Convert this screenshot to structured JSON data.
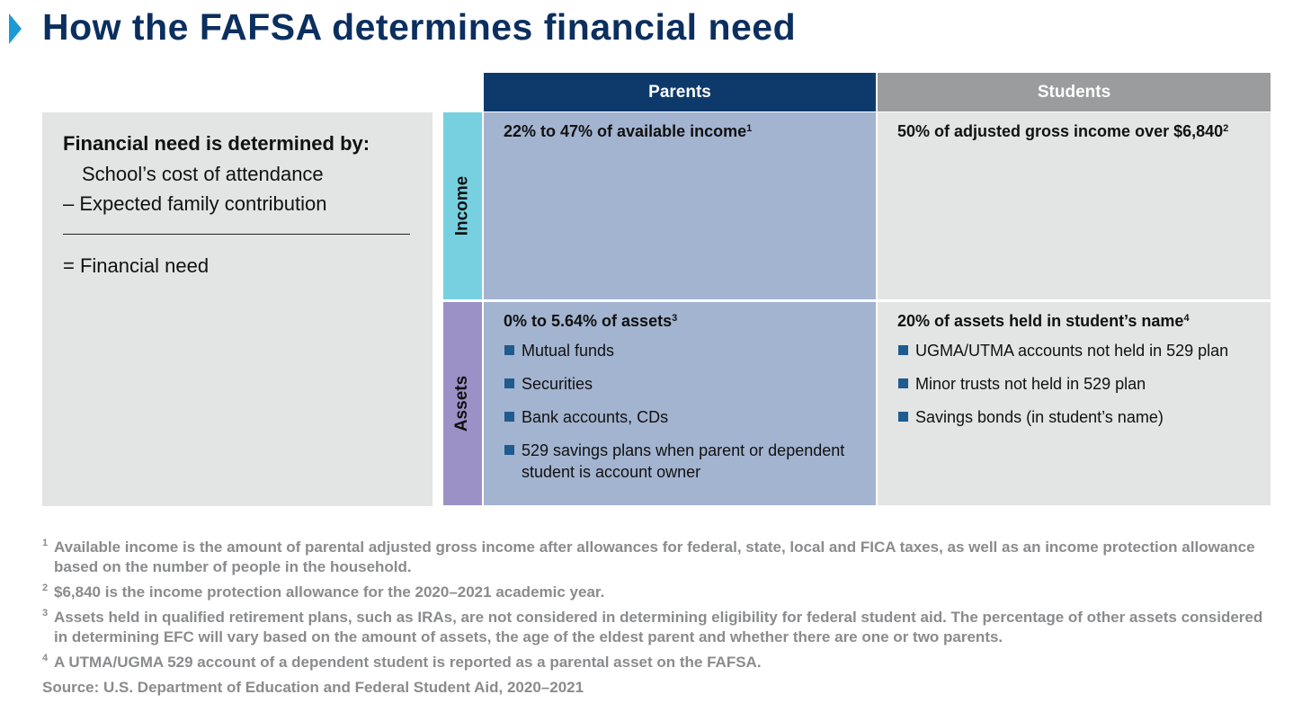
{
  "title": "How the FAFSA determines financial need",
  "left_box": {
    "heading": "Financial need is determined by:",
    "line1": "School’s cost of attendance",
    "line2": "– Expected family contribution",
    "line3": "= Financial need"
  },
  "columns": {
    "parents": "Parents",
    "students": "Students"
  },
  "rows": {
    "income": "Income",
    "assets": "Assets"
  },
  "cells": {
    "parents_income": {
      "text": "22% to 47% of available income",
      "sup": "1"
    },
    "students_income": {
      "text": "50% of adjusted gross income over $6,840",
      "sup": "2"
    },
    "parents_assets": {
      "text": "0% to 5.64% of assets",
      "sup": "3",
      "items": [
        "Mutual funds",
        "Securities",
        "Bank accounts, CDs",
        "529 savings plans when parent or dependent student is account owner"
      ]
    },
    "students_assets": {
      "text": "20% of assets held in student’s name",
      "sup": "4",
      "items": [
        "UGMA/UTMA accounts not held in 529 plan",
        "Minor trusts not held in 529 plan",
        "Savings bonds (in student’s name)"
      ]
    }
  },
  "footnotes": [
    {
      "num": "1",
      "text": "Available income is the amount of parental adjusted gross income after allowances for federal, state, local and FICA taxes, as well as an income protection allowance based on the number of people in the household."
    },
    {
      "num": "2",
      "text": "$6,840 is the income protection allowance for the 2020–2021 academic year."
    },
    {
      "num": "3",
      "text": "Assets held in qualified retirement plans, such as IRAs, are not considered in determining eligibility for federal student aid. The percentage of other assets considered in determining EFC will vary based on the amount of assets, the age of the eldest parent and whether there are one or two parents."
    },
    {
      "num": "4",
      "text": "A UTMA/UGMA 529 account of a dependent student is reported as a parental asset on the FAFSA."
    }
  ],
  "source": "Source: U.S. Department of Education and Federal Student Aid, 2020–2021",
  "colors": {
    "title": "#0b2f5e",
    "marker": "#1c9ad6",
    "parents_header": "#0e3a6b",
    "students_header": "#9b9c9d",
    "income_label": "#77d0e0",
    "assets_label": "#9c91c7",
    "parents_cell": "#a3b4d0",
    "students_cell": "#e3e4e4",
    "bullet": "#1f5b8f"
  }
}
